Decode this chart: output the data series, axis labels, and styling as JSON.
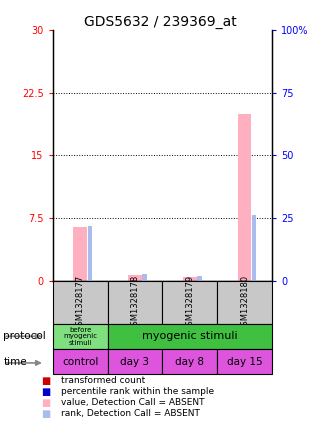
{
  "title": "GDS5632 / 239369_at",
  "samples": [
    "GSM1328177",
    "GSM1328178",
    "GSM1328179",
    "GSM1328180"
  ],
  "absent_values": [
    6.5,
    0.7,
    0.55,
    20.0
  ],
  "absent_ranks_pct": [
    22.0,
    2.8,
    2.2,
    26.5
  ],
  "ylim_left": [
    0,
    30
  ],
  "ylim_right": [
    0,
    100
  ],
  "yticks_left": [
    0,
    7.5,
    15,
    22.5,
    30
  ],
  "yticks_right": [
    0,
    25,
    50,
    75,
    100
  ],
  "ytick_labels_left": [
    "0",
    "7.5",
    "15",
    "22.5",
    "30"
  ],
  "ytick_labels_right": [
    "0",
    "25",
    "50",
    "75",
    "100%"
  ],
  "protocol_label0": "before\nmyogenic\nstimuli",
  "protocol_label1": "myogenic stimuli",
  "protocol_color0": "#80E080",
  "protocol_color1": "#40C040",
  "time_labels": [
    "control",
    "day 3",
    "day 8",
    "day 15"
  ],
  "time_color": "#DD55DD",
  "bar_color_absent": "#FFB0C0",
  "rank_color_absent": "#AABBEE",
  "bar_color_present": "#CC0000",
  "rank_color_present": "#0000CC",
  "sample_bg_color": "#C8C8C8",
  "title_fontsize": 10,
  "tick_fontsize": 7,
  "sample_fontsize": 6,
  "legend_fontsize": 6.5,
  "bar_width": 0.25,
  "rank_bar_width": 0.08
}
